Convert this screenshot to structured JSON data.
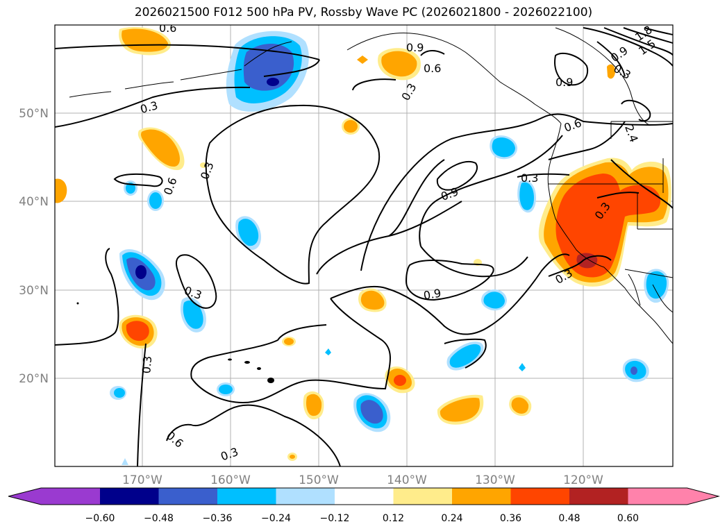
{
  "title": "2026021500 F012 500 hPa PV, Rossby Wave PC (2026021800 - 2026022100)",
  "axes": {
    "lon_labels": [
      "170°W",
      "160°W",
      "150°W",
      "140°W",
      "130°W",
      "120°W"
    ],
    "lat_labels": [
      "50°N",
      "40°N",
      "30°N",
      "20°N"
    ],
    "grid": true
  },
  "contour_labels": [
    "0.6",
    "0.9",
    "0.6",
    "0.3",
    "0.3",
    "0.3",
    "0.6",
    "0.9",
    "0.6",
    "0.3",
    "0.9",
    "0.3",
    "0.3",
    "0.3",
    "0.6",
    "0.3",
    "0.3",
    "0.9",
    "0.3",
    "2.4",
    "1.8",
    "1.5",
    "0.9"
  ],
  "colorbar": {
    "ticks": [
      "−0.60",
      "−0.48",
      "−0.36",
      "−0.24",
      "−0.12",
      "0.12",
      "0.24",
      "0.36",
      "0.48",
      "0.60"
    ],
    "colors": [
      "#9a3ad0",
      "#00008b",
      "#3a5fcd",
      "#00bfff",
      "#b0e0ff",
      "#ffffff",
      "#ffec8b",
      "#ffa500",
      "#ff4500",
      "#b22222",
      "#ff82ab",
      "#ff82ab"
    ]
  }
}
